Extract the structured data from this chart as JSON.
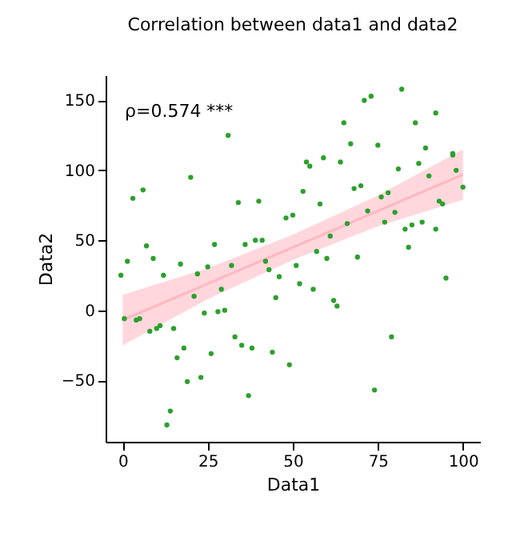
{
  "chart_data": {
    "type": "scatter",
    "title": "Correlation between data1 and data2",
    "xlabel": "Data1",
    "ylabel": "Data2",
    "annotations": [
      "ρ=0.574 ***"
    ],
    "xlim": [
      -5,
      105
    ],
    "xticks": [
      0,
      25,
      50,
      75,
      100
    ],
    "ylim": [
      -94,
      168
    ],
    "yticks": [
      -50,
      0,
      50,
      100,
      150
    ],
    "grid": false,
    "series": [
      {
        "type": "line",
        "color": "#ffb6c1",
        "x": [
          0,
          25,
          50,
          75,
          100
        ],
        "values": [
          -7,
          19,
          45,
          71,
          97
        ],
        "lower": [
          -25,
          8,
          36,
          60,
          79
        ],
        "upper": [
          11,
          30,
          54,
          82,
          115
        ]
      },
      {
        "color": "#2ca02c",
        "marker": "circle",
        "x": [
          -0.5,
          1.4,
          9,
          12,
          17,
          22,
          25,
          32,
          42,
          43,
          46,
          0.5,
          4,
          5,
          8,
          10,
          11,
          15,
          21,
          29,
          24,
          28,
          30,
          45,
          18,
          16,
          26,
          33,
          35,
          38,
          44,
          49,
          19,
          23,
          37,
          14,
          13,
          52,
          56,
          62,
          63,
          95,
          79,
          74,
          51,
          57,
          60,
          69,
          61,
          84,
          83,
          85,
          92,
          77,
          88,
          66,
          50,
          48,
          72,
          80,
          93,
          94,
          58,
          76,
          78,
          53,
          68,
          70,
          100,
          90,
          98,
          55,
          54,
          59,
          64,
          81,
          87,
          97,
          97,
          89,
          75,
          67,
          65,
          86,
          92,
          71,
          73,
          82,
          31,
          20,
          6,
          3,
          34,
          40,
          7,
          27,
          36,
          39,
          41
        ],
        "values": [
          25,
          35,
          37,
          25,
          33,
          26,
          31,
          32,
          35,
          29,
          24,
          -6,
          -7,
          -6,
          -15,
          -13,
          -11,
          -13,
          10,
          15,
          -2,
          -1,
          0,
          9,
          -27,
          -34,
          -31,
          -19,
          -25,
          -27,
          -30,
          -39,
          -51,
          -48,
          -61,
          -72,
          -82,
          19,
          15,
          7,
          3,
          23,
          -19,
          -57,
          32,
          42,
          37,
          38,
          53,
          45,
          58,
          61,
          58,
          63,
          63,
          62,
          68,
          66,
          71,
          70,
          78,
          76,
          76,
          81,
          84,
          85,
          87,
          89,
          88,
          96,
          100,
          103,
          106,
          109,
          106,
          101,
          105,
          112,
          111,
          116,
          118,
          119,
          134,
          134,
          141,
          150,
          153,
          158,
          125,
          95,
          86,
          80,
          77,
          78,
          46,
          47,
          47,
          50,
          50
        ]
      }
    ]
  }
}
